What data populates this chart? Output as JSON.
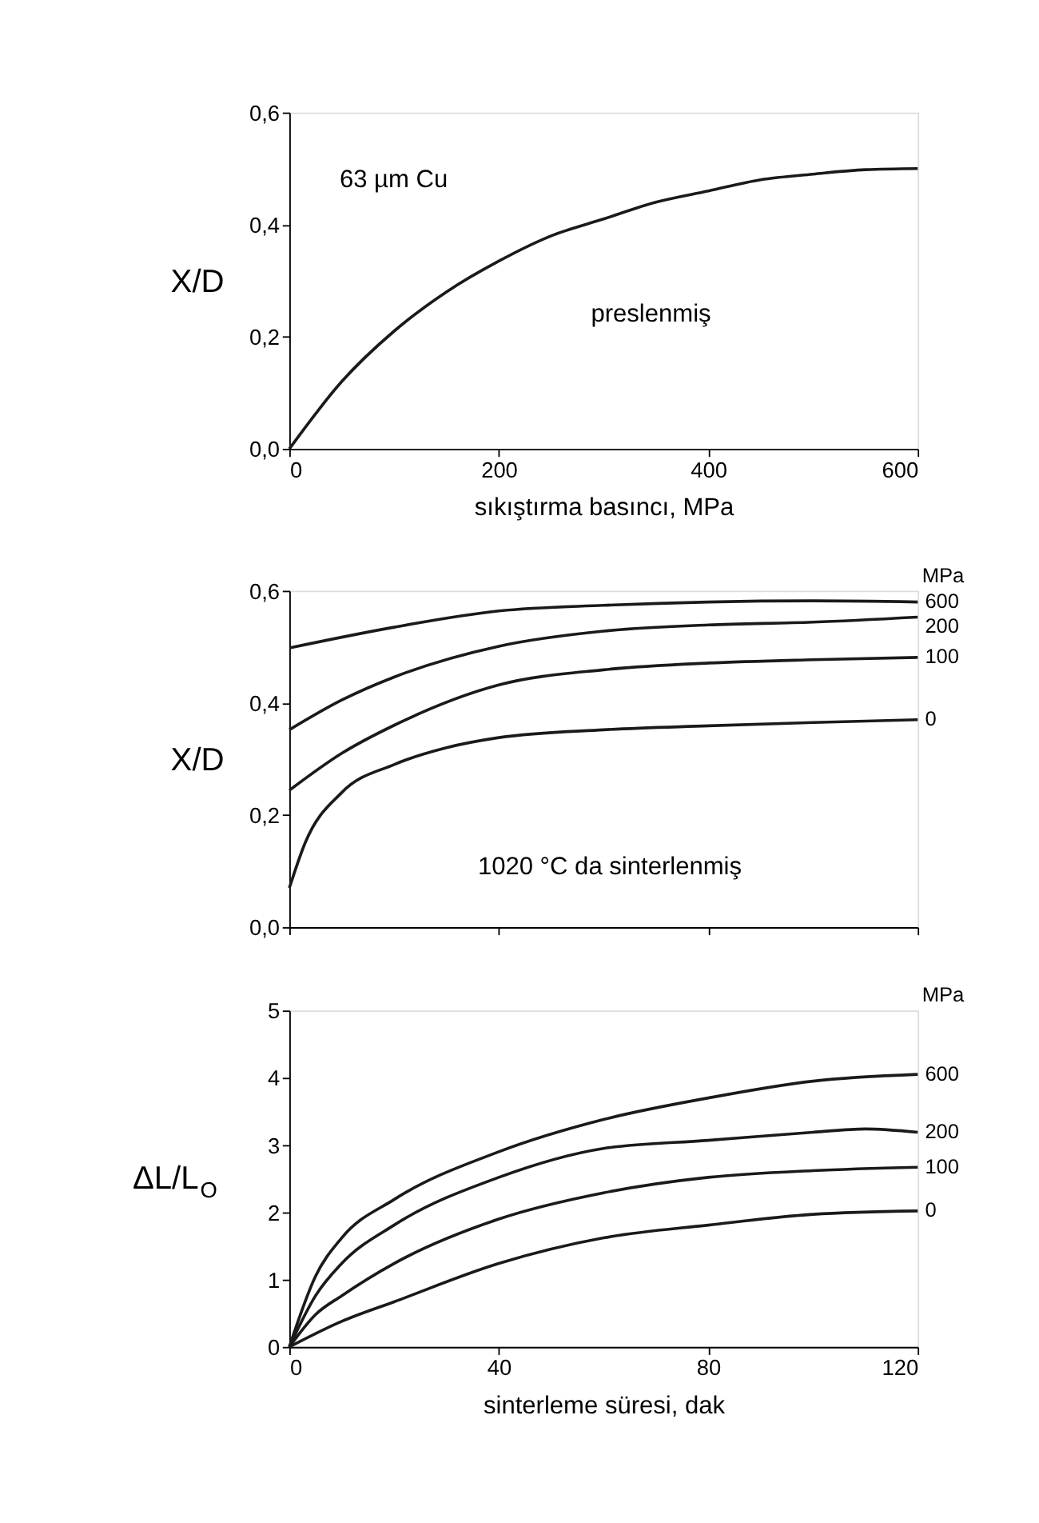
{
  "chart_data": [
    {
      "type": "line",
      "x": [
        0,
        50,
        100,
        150,
        200,
        250,
        300,
        350,
        400,
        450,
        500,
        550,
        600
      ],
      "xlabel": "sıkıştırma basıncı, MPa",
      "ylabel": "X/D",
      "xlim": [
        0,
        600
      ],
      "xticks": [
        0,
        200,
        400,
        600
      ],
      "ylim": [
        0,
        0.6
      ],
      "yticks": [
        {
          "value": 0,
          "label": "0,0"
        },
        {
          "value": 0.2,
          "label": "0,2"
        },
        {
          "value": 0.4,
          "label": "0,4"
        },
        {
          "value": 0.6,
          "label": "0,6"
        }
      ],
      "grid": false,
      "annotations": [
        "63 µm Cu",
        "preslenmiş"
      ],
      "series": [
        {
          "color": "#1a1a1a",
          "values": [
            0,
            0.12,
            0.21,
            0.28,
            0.335,
            0.38,
            0.41,
            0.44,
            0.46,
            0.48,
            0.49,
            0.498,
            0.5
          ]
        }
      ]
    },
    {
      "type": "line",
      "ylabel": "X/D",
      "legend_title": "MPa",
      "xlim": [
        0,
        120
      ],
      "xticks": [
        0,
        40,
        80,
        120
      ],
      "ylim": [
        0,
        0.6
      ],
      "yticks": [
        {
          "value": 0,
          "label": "0,0"
        },
        {
          "value": 0.2,
          "label": "0,2"
        },
        {
          "value": 0.4,
          "label": "0,4"
        },
        {
          "value": 0.6,
          "label": "0,6"
        }
      ],
      "tick_labels": "y",
      "grid": false,
      "annotations": [
        "1020 °C da  sinterlenmiş"
      ],
      "series": [
        {
          "name": "600",
          "color": "#1a1a1a",
          "x": [
            0,
            20,
            40,
            60,
            80,
            100,
            120
          ],
          "values": [
            0.498,
            0.535,
            0.564,
            0.574,
            0.58,
            0.582,
            0.58
          ]
        },
        {
          "name": "200",
          "color": "#1a1a1a",
          "x": [
            0,
            10,
            20,
            40,
            60,
            80,
            100,
            120
          ],
          "values": [
            0.352,
            0.405,
            0.446,
            0.501,
            0.528,
            0.539,
            0.544,
            0.553
          ]
        },
        {
          "name": "100",
          "color": "#1a1a1a",
          "x": [
            0,
            10,
            20,
            40,
            60,
            80,
            100,
            120
          ],
          "values": [
            0.244,
            0.31,
            0.36,
            0.432,
            0.459,
            0.471,
            0.477,
            0.481
          ]
        },
        {
          "name": "0",
          "color": "#1a1a1a",
          "x": [
            0,
            3,
            10,
            20,
            30,
            40,
            60,
            80,
            100,
            120
          ],
          "values": [
            0.07,
            0.15,
            0.24,
            0.29,
            0.32,
            0.338,
            0.352,
            0.359,
            0.365,
            0.37
          ]
        }
      ]
    },
    {
      "type": "line",
      "xlabel": "sinterleme süresi, dak",
      "ylabel": "ΔL/L$_{O}$",
      "legend_title": "MPa",
      "xlim": [
        0,
        120
      ],
      "xticks": [
        0,
        40,
        80,
        120
      ],
      "ylim": [
        0,
        5
      ],
      "yticks": [
        0,
        1,
        2,
        3,
        4,
        5
      ],
      "grid": false,
      "series": [
        {
          "name": "600",
          "color": "#1a1a1a",
          "x": [
            0,
            5,
            10,
            20,
            40,
            60,
            80,
            100,
            120
          ],
          "values": [
            0,
            1.05,
            1.62,
            2.19,
            2.9,
            3.38,
            3.7,
            3.95,
            4.05
          ]
        },
        {
          "name": "200",
          "color": "#1a1a1a",
          "x": [
            0,
            5,
            10,
            20,
            40,
            60,
            80,
            100,
            110,
            120
          ],
          "values": [
            0,
            0.76,
            1.24,
            1.81,
            2.52,
            2.95,
            3.07,
            3.19,
            3.24,
            3.19
          ]
        },
        {
          "name": "100",
          "color": "#1a1a1a",
          "x": [
            0,
            5,
            10,
            20,
            40,
            60,
            80,
            100,
            120
          ],
          "values": [
            0,
            0.48,
            0.76,
            1.24,
            1.9,
            2.29,
            2.52,
            2.62,
            2.67
          ]
        },
        {
          "name": "0",
          "color": "#1a1a1a",
          "x": [
            0,
            10,
            20,
            40,
            60,
            80,
            100,
            120
          ],
          "values": [
            0,
            0.38,
            0.67,
            1.24,
            1.62,
            1.81,
            1.97,
            2.02
          ]
        }
      ]
    }
  ]
}
